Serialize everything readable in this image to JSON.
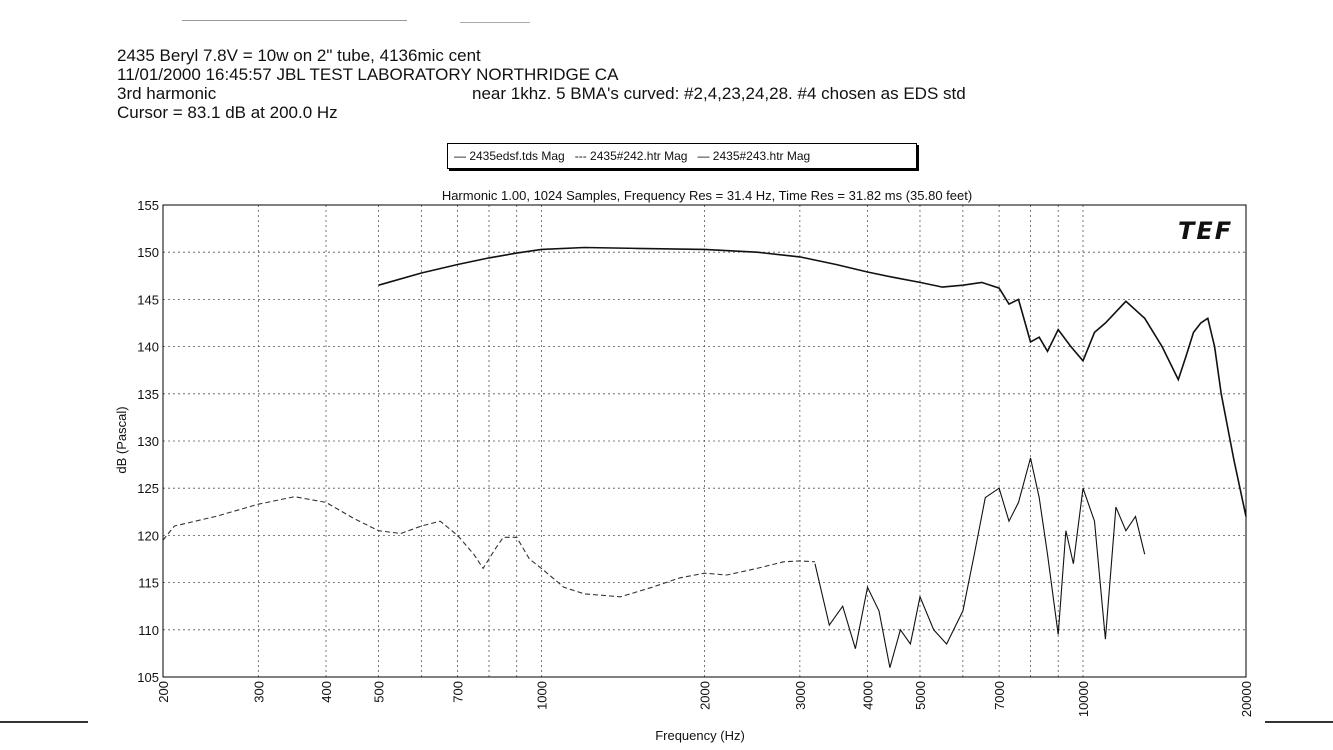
{
  "header": {
    "line1": "2435 Beryl 7.8V = 10w on 2\" tube, 4136mic cent",
    "line2": "11/01/2000   16:45:57    JBL TEST LABORATORY  NORTHRIDGE CA",
    "line3": "3rd harmonic",
    "line4": "Cursor = 83.1 dB at 200.0 Hz",
    "note": "near 1khz.  5 BMA's curved: #2,4,23,24,28.  #4 chosen as EDS std"
  },
  "legend": {
    "entries": [
      "— 2435edsf.tds Mag",
      "--- 2435#242.htr Mag",
      "— 2435#243.htr Mag"
    ]
  },
  "logo": "TEF",
  "chart_data": {
    "type": "line",
    "title": "Harmonic 1.00, 1024 Samples, Frequency Res = 31.4 Hz, Time Res = 31.82 ms (35.80 feet)",
    "xlabel": "Frequency (Hz)",
    "ylabel": "dB (Pascal)",
    "x_scale": "log",
    "xlim": [
      200,
      20000
    ],
    "ylim": [
      105,
      155
    ],
    "x_ticks": [
      200,
      300,
      400,
      500,
      700,
      1000,
      2000,
      3000,
      4000,
      5000,
      7000,
      10000,
      20000
    ],
    "x_minor_ticks": [
      600,
      800,
      900,
      6000,
      8000,
      9000
    ],
    "y_ticks": [
      105,
      110,
      115,
      120,
      125,
      130,
      135,
      140,
      145,
      150,
      155
    ],
    "grid": true,
    "legend_position": "top-center",
    "series": [
      {
        "name": "2435edsf.tds Mag",
        "style": "solid",
        "x": [
          500,
          600,
          700,
          800,
          900,
          1000,
          1200,
          1500,
          2000,
          2500,
          3000,
          3500,
          4000,
          4500,
          5000,
          5500,
          6000,
          6500,
          7000,
          7300,
          7600,
          8000,
          8300,
          8600,
          9000,
          9500,
          10000,
          10500,
          11000,
          12000,
          13000,
          14000,
          15000,
          15500,
          16000,
          16500,
          17000,
          17500,
          18000,
          19000,
          20000
        ],
        "y": [
          146.5,
          147.8,
          148.7,
          149.4,
          149.9,
          150.3,
          150.5,
          150.4,
          150.3,
          150.0,
          149.5,
          148.7,
          147.9,
          147.3,
          146.8,
          146.3,
          146.5,
          146.8,
          146.2,
          144.5,
          145.0,
          140.5,
          141.0,
          139.5,
          141.8,
          140.0,
          138.5,
          141.5,
          142.5,
          144.8,
          143.0,
          140.0,
          136.5,
          139.0,
          141.5,
          142.5,
          143.0,
          140.0,
          135.0,
          128.0,
          122.0
        ]
      },
      {
        "name": "2435#242.htr Mag",
        "style": "dashed",
        "x": [
          200,
          210,
          250,
          300,
          350,
          400,
          450,
          500,
          550,
          600,
          650,
          700,
          750,
          780,
          820,
          850,
          900,
          950,
          1000,
          1100,
          1200,
          1400,
          1600,
          1800,
          2000,
          2200,
          2500,
          2800,
          3000,
          3200
        ],
        "y": [
          119.5,
          121.0,
          122.0,
          123.3,
          124.1,
          123.5,
          121.8,
          120.5,
          120.2,
          121.0,
          121.5,
          120.0,
          118.0,
          116.5,
          118.5,
          119.8,
          119.8,
          117.5,
          116.5,
          114.5,
          113.8,
          113.5,
          114.5,
          115.5,
          116.0,
          115.8,
          116.5,
          117.2,
          117.3,
          117.2
        ]
      },
      {
        "name": "2435#243.htr Mag",
        "style": "solid",
        "x": [
          3200,
          3400,
          3600,
          3800,
          4000,
          4200,
          4400,
          4600,
          4800,
          5000,
          5300,
          5600,
          6000,
          6300,
          6600,
          7000,
          7300,
          7600,
          8000,
          8300,
          8600,
          9000,
          9300,
          9600,
          10000,
          10500,
          11000,
          11500,
          12000,
          12500,
          13000
        ],
        "y": [
          117.0,
          110.5,
          112.5,
          108.0,
          114.5,
          112.0,
          106.0,
          110.0,
          108.5,
          113.5,
          110.0,
          108.5,
          112.0,
          118.0,
          124.0,
          125.0,
          121.5,
          123.5,
          128.2,
          124.0,
          118.0,
          109.5,
          120.5,
          117.0,
          125.0,
          121.5,
          109.0,
          123.0,
          120.5,
          122.0,
          118.0
        ]
      }
    ]
  }
}
